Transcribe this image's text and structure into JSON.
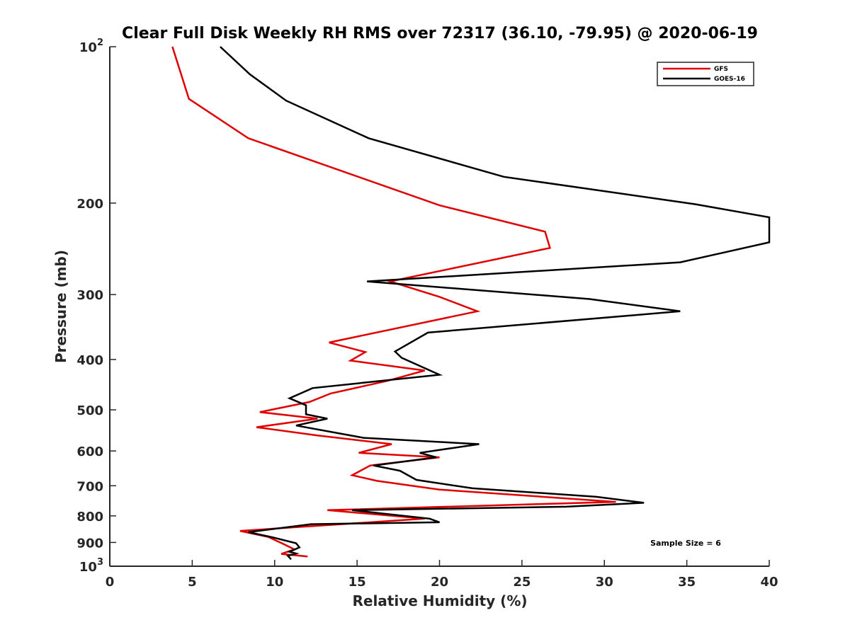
{
  "chart_data": {
    "type": "line",
    "title": "Clear Full Disk Weekly RH RMS over 72317 (36.10, -79.95) @ 2020-06-19",
    "xlabel": "Relative Humidity (%)",
    "ylabel": "Pressure (mb)",
    "xlim": [
      0,
      40
    ],
    "ylim": [
      100,
      1000
    ],
    "yscale": "log",
    "y_reversed": true,
    "x_ticks": [
      "0",
      "5",
      "10",
      "15",
      "20",
      "25",
      "30",
      "35",
      "40"
    ],
    "y_ticks": [
      {
        "value": 100,
        "base": "10",
        "exp": "2"
      },
      {
        "value": 200,
        "label": "200"
      },
      {
        "value": 300,
        "label": "300"
      },
      {
        "value": 400,
        "label": "400"
      },
      {
        "value": 500,
        "label": "500"
      },
      {
        "value": 600,
        "label": "600"
      },
      {
        "value": 700,
        "label": "700"
      },
      {
        "value": 800,
        "label": "800"
      },
      {
        "value": 900,
        "label": "900"
      },
      {
        "value": 1000,
        "base": "10",
        "exp": "3"
      }
    ],
    "legend_position": "top-right",
    "annotation": "Sample Size = 6",
    "series": [
      {
        "name": "GFS",
        "color": "#e00000",
        "points": [
          [
            3.8,
            100
          ],
          [
            4.8,
            126
          ],
          [
            8.4,
            150
          ],
          [
            20,
            202
          ],
          [
            26.4,
            227
          ],
          [
            26.7,
            244
          ],
          [
            17,
            283
          ],
          [
            20,
            303
          ],
          [
            22.3,
            323
          ],
          [
            13.3,
            371
          ],
          [
            15.5,
            387
          ],
          [
            14.6,
            402
          ],
          [
            19.1,
            420
          ],
          [
            16.8,
            440
          ],
          [
            13.4,
            465
          ],
          [
            12.1,
            483
          ],
          [
            9.1,
            505
          ],
          [
            12.6,
            520
          ],
          [
            8.9,
            540
          ],
          [
            12.6,
            560
          ],
          [
            17.1,
            582
          ],
          [
            15.1,
            605
          ],
          [
            20.0,
            617
          ],
          [
            15.8,
            640
          ],
          [
            14.7,
            668
          ],
          [
            16.2,
            685
          ],
          [
            20.0,
            712
          ],
          [
            30.7,
            752
          ],
          [
            13.2,
            780
          ],
          [
            19.1,
            810
          ],
          [
            7.9,
            855
          ],
          [
            9.6,
            878
          ],
          [
            10.5,
            905
          ],
          [
            11.2,
            928
          ],
          [
            10.4,
            947
          ],
          [
            12.0,
            958
          ]
        ]
      },
      {
        "name": "GOES-16",
        "color": "#000000",
        "points": [
          [
            6.7,
            100
          ],
          [
            8.5,
            113
          ],
          [
            10.7,
            127
          ],
          [
            15.7,
            150
          ],
          [
            23.9,
            178
          ],
          [
            35.5,
            201
          ],
          [
            40,
            213
          ],
          [
            40,
            238
          ],
          [
            34.6,
            260
          ],
          [
            15.6,
            283
          ],
          [
            29.1,
            306
          ],
          [
            34.6,
            323
          ],
          [
            19.3,
            355
          ],
          [
            17.3,
            386
          ],
          [
            17.7,
            397
          ],
          [
            20.0,
            428
          ],
          [
            12.3,
            454
          ],
          [
            10.9,
            475
          ],
          [
            11.9,
            490
          ],
          [
            11.9,
            510
          ],
          [
            13.2,
            520
          ],
          [
            11.3,
            536
          ],
          [
            15.4,
            566
          ],
          [
            22.4,
            582
          ],
          [
            18.8,
            605
          ],
          [
            19.8,
            617
          ],
          [
            16.0,
            640
          ],
          [
            17.6,
            655
          ],
          [
            18.6,
            682
          ],
          [
            22.0,
            708
          ],
          [
            29.5,
            735
          ],
          [
            32.4,
            755
          ],
          [
            27.7,
            768
          ],
          [
            14.7,
            780
          ],
          [
            19.4,
            810
          ],
          [
            20.0,
            823
          ],
          [
            12.2,
            830
          ],
          [
            8.4,
            860
          ],
          [
            9.9,
            880
          ],
          [
            11.3,
            903
          ],
          [
            11.5,
            920
          ],
          [
            10.9,
            938
          ],
          [
            11.3,
            945
          ],
          [
            10.8,
            955
          ],
          [
            11.0,
            970
          ]
        ]
      }
    ]
  }
}
